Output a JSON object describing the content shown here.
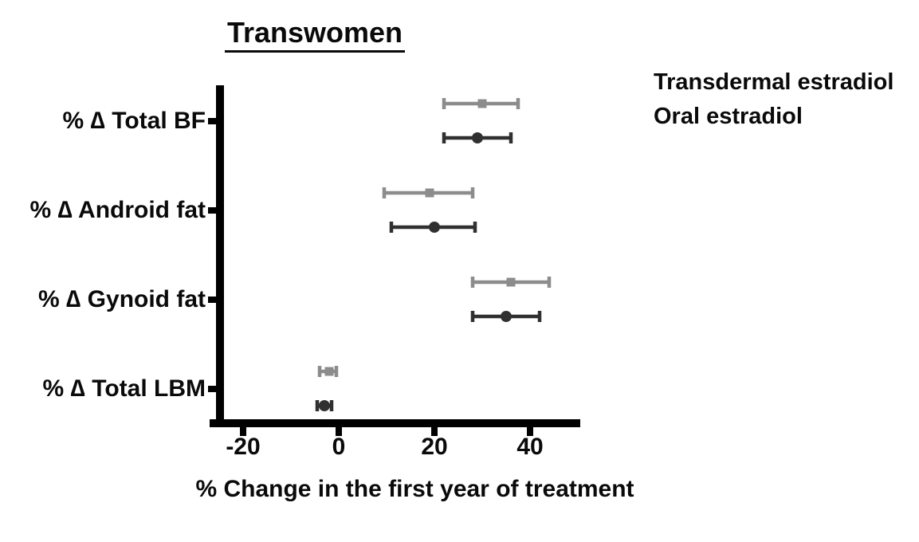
{
  "chart_data": {
    "type": "forest",
    "title": "Transwomen",
    "xlabel": "% Change in the first year of treatment",
    "xlim": [
      -27,
      50.5
    ],
    "xticks": [
      -20,
      0,
      20,
      40
    ],
    "grid": false,
    "legend_position": "top-right",
    "axis_color": "#000000",
    "categories": [
      "% ∆ Total BF",
      "% ∆ Android fat",
      "% ∆ Gynoid fat",
      "% ∆ Total LBM"
    ],
    "series": [
      {
        "name": "Transdermal estradiol",
        "marker": "circle",
        "color": "#303030",
        "values": [
          {
            "category": "% ∆ Total BF",
            "mean": 29,
            "lo": 22,
            "hi": 36
          },
          {
            "category": "% ∆ Android fat",
            "mean": 20,
            "lo": 11,
            "hi": 28.5
          },
          {
            "category": "% ∆ Gynoid fat",
            "mean": 35,
            "lo": 28,
            "hi": 42
          },
          {
            "category": "% ∆ Total LBM",
            "mean": -3,
            "lo": -4.5,
            "hi": -1.5
          }
        ]
      },
      {
        "name": "Oral estradiol",
        "marker": "square",
        "color": "#8c8c8c",
        "values": [
          {
            "category": "% ∆ Total BF",
            "mean": 30,
            "lo": 22,
            "hi": 37.5
          },
          {
            "category": "% ∆ Android fat",
            "mean": 19,
            "lo": 9.5,
            "hi": 28
          },
          {
            "category": "% ∆ Gynoid fat",
            "mean": 36,
            "lo": 28,
            "hi": 44
          },
          {
            "category": "% ∆ Total LBM",
            "mean": -2,
            "lo": -4,
            "hi": -0.5
          }
        ]
      }
    ]
  }
}
